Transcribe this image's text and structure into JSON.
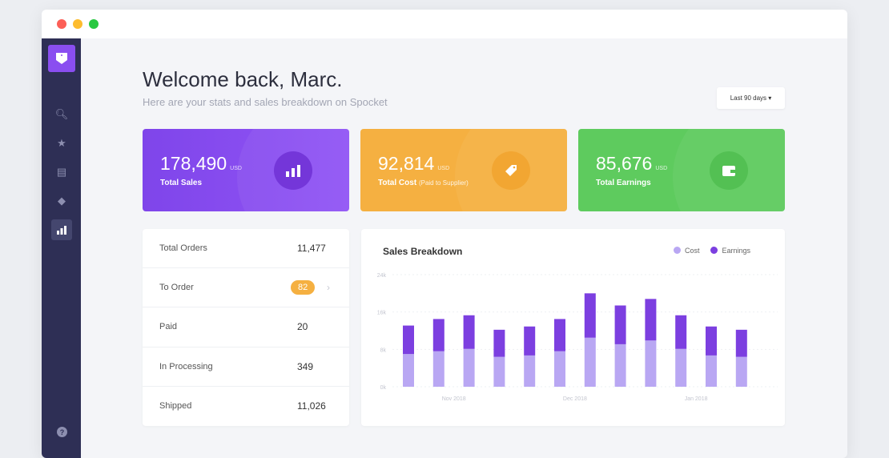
{
  "header": {
    "title": "Welcome back, Marc.",
    "subtitle": "Here are your stats and sales breakdown on Spocket",
    "range_select": "Last 90 days"
  },
  "sidebar": {
    "items": [
      "search-icon",
      "star-icon",
      "catalog-icon",
      "tag-icon",
      "chart-icon",
      "help-icon"
    ],
    "active": "chart-icon"
  },
  "cards": [
    {
      "value": "178,490",
      "unit": "USD",
      "label": "Total Sales",
      "note": "",
      "color": "#8a4ef0",
      "icon": "bar-chart-icon"
    },
    {
      "value": "92,814",
      "unit": "USD",
      "label": "Total Cost",
      "note": "(Paid to Supplier)",
      "color": "#f5b041",
      "icon": "tag-icon"
    },
    {
      "value": "85,676",
      "unit": "USD",
      "label": "Total Earnings",
      "note": "",
      "color": "#5ecb5e",
      "icon": "wallet-icon"
    }
  ],
  "orders": [
    {
      "label": "Total Orders",
      "value": "11,477"
    },
    {
      "label": "To Order",
      "value": "82",
      "badge": true
    },
    {
      "label": "Paid",
      "value": "20"
    },
    {
      "label": "In Processing",
      "value": "349"
    },
    {
      "label": "Shipped",
      "value": "11,026"
    }
  ],
  "chart_data": {
    "type": "bar",
    "stacked": true,
    "title": "Sales Breakdown",
    "ylim": [
      0,
      24
    ],
    "yticks": [
      "0k",
      "8k",
      "16k",
      "24k"
    ],
    "ytick_values": [
      0,
      8,
      16,
      24
    ],
    "xlabels": [
      "Nov 2018",
      "Dec 2018",
      "Jan 2018"
    ],
    "series": [
      {
        "name": "Cost",
        "color": "#b9a7f3",
        "values": [
          7.0,
          7.6,
          8.1,
          6.4,
          6.7,
          7.6,
          10.5,
          9.1,
          9.9,
          8.1,
          6.7,
          6.4
        ]
      },
      {
        "name": "Earnings",
        "color": "#7c3fe0",
        "values": [
          6.1,
          6.9,
          7.2,
          5.8,
          6.2,
          6.9,
          9.5,
          8.3,
          8.9,
          7.2,
          6.2,
          5.8
        ]
      }
    ],
    "legend": "top-right"
  }
}
